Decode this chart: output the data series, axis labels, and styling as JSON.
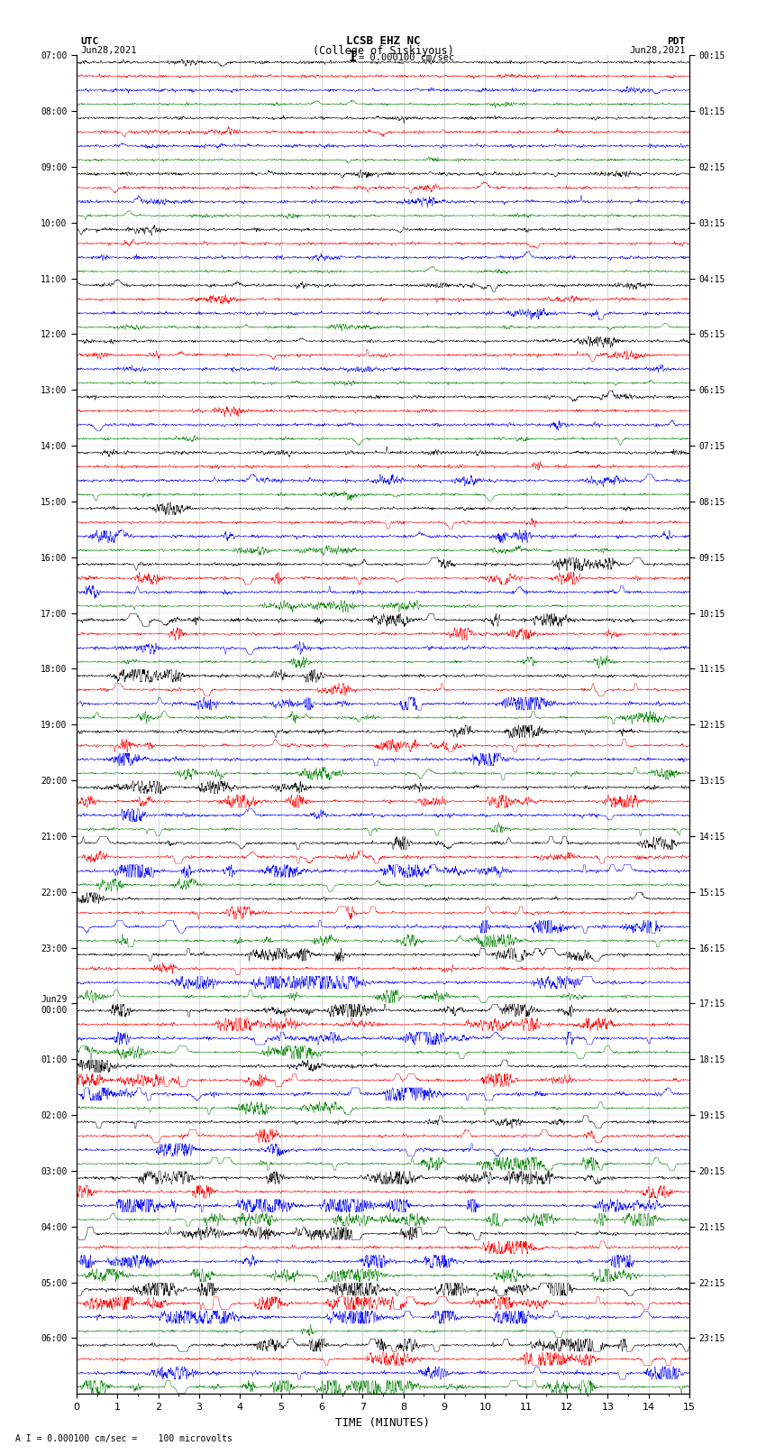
{
  "title_line1": "LCSB EHZ NC",
  "title_line2": "(College of Siskiyous)",
  "scale_label": "= 0.000100 cm/sec",
  "bottom_note": "A I = 0.000100 cm/sec =    100 microvolts",
  "utc_label": "UTC",
  "utc_date": "Jun28,2021",
  "pdt_label": "PDT",
  "pdt_date": "Jun28,2021",
  "xlabel": "TIME (MINUTES)",
  "xmin": 0,
  "xmax": 15,
  "background_color": "#ffffff",
  "trace_colors": [
    "black",
    "red",
    "blue",
    "green"
  ],
  "left_times": [
    "07:00",
    "08:00",
    "09:00",
    "10:00",
    "11:00",
    "12:00",
    "13:00",
    "14:00",
    "15:00",
    "16:00",
    "17:00",
    "18:00",
    "19:00",
    "20:00",
    "21:00",
    "22:00",
    "23:00",
    "Jun29\n00:00",
    "01:00",
    "02:00",
    "03:00",
    "04:00",
    "05:00",
    "06:00"
  ],
  "right_times": [
    "00:15",
    "01:15",
    "02:15",
    "03:15",
    "04:15",
    "05:15",
    "06:15",
    "07:15",
    "08:15",
    "09:15",
    "10:15",
    "11:15",
    "12:15",
    "13:15",
    "14:15",
    "15:15",
    "16:15",
    "17:15",
    "18:15",
    "19:15",
    "20:15",
    "21:15",
    "22:15",
    "23:15"
  ],
  "n_rows": 24,
  "traces_per_row": 4,
  "fig_width": 8.5,
  "fig_height": 16.13,
  "seed": 42
}
